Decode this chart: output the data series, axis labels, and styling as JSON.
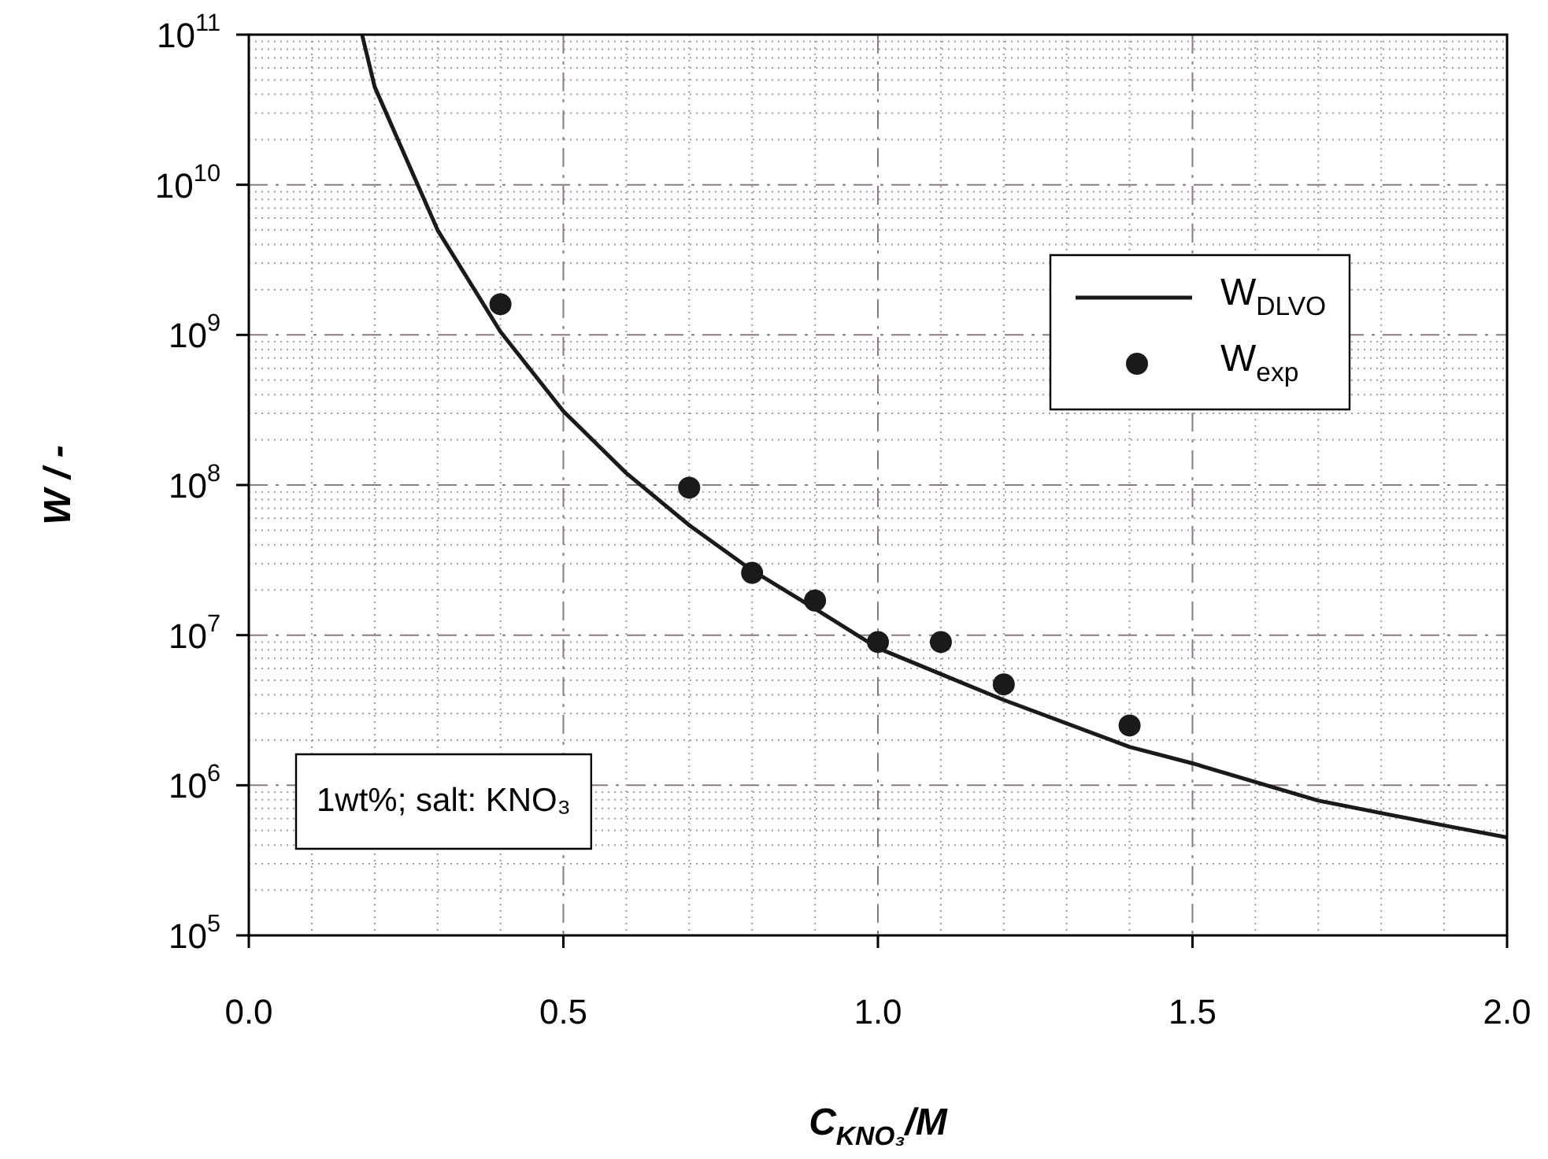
{
  "chart_data": {
    "type": "line",
    "xlabel": "C$_{KNO₃}$/M",
    "ylabel": "W / -",
    "xlim": [
      0,
      2
    ],
    "xticks": [
      {
        "value": 0,
        "label": "0.0"
      },
      {
        "value": 0.5,
        "label": "0.5"
      },
      {
        "value": 1,
        "label": "1.0"
      },
      {
        "value": 1.5,
        "label": "1.5"
      },
      {
        "value": 2,
        "label": "2.0"
      }
    ],
    "ylim": [
      100000,
      100000000000
    ],
    "yticks": [
      {
        "value": 100000,
        "label": "10$^{5}$"
      },
      {
        "value": 1000000,
        "label": "10$^{6}$"
      },
      {
        "value": 10000000,
        "label": "10$^{7}$"
      },
      {
        "value": 100000000,
        "label": "10$^{8}$"
      },
      {
        "value": 1000000000,
        "label": "10$^{9}$"
      },
      {
        "value": 10000000000,
        "label": "10$^{10}$"
      },
      {
        "value": 100000000000,
        "label": "10$^{11}$"
      }
    ],
    "log": "y",
    "grid": true,
    "legend": "right",
    "annotations": [
      "1wt%; salt: KNO₃"
    ],
    "series": [
      {
        "name": "W$_{DLVO}$",
        "type": "line",
        "color": "#1a1a1a",
        "line_style": "solid",
        "x": [
          0.18,
          0.2,
          0.3,
          0.4,
          0.5,
          0.6,
          0.7,
          0.8,
          0.9,
          1.0,
          1.1,
          1.2,
          1.4,
          1.5,
          1.7,
          1.9,
          2.0
        ],
        "values": [
          100000000000,
          45000000000,
          5000000000,
          1050000000,
          310000000,
          120000000,
          54000000,
          27000000,
          15000000,
          8200000,
          5500000,
          3700000,
          1800000,
          1400000,
          790000,
          540000,
          450000
        ]
      },
      {
        "name": "W$_{exp}$",
        "type": "scatter",
        "color": "#1a1a1a",
        "marker": "circle",
        "x": [
          0.4,
          0.7,
          0.8,
          0.9,
          1.0,
          1.1,
          1.2,
          1.4
        ],
        "values": [
          1600000000,
          96000000,
          26000000,
          17000000,
          9000000,
          9000000,
          4700000,
          2500000
        ]
      }
    ]
  }
}
